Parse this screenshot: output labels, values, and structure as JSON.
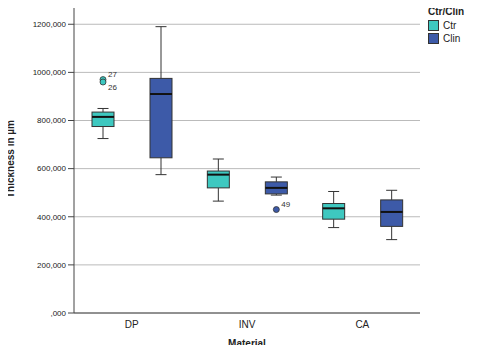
{
  "chart_data": {
    "type": "box",
    "x_label": "Material",
    "y_label": "Thickness in µm",
    "categories": [
      "DP",
      "INV",
      "CA"
    ],
    "ylim": [
      0,
      1280000
    ],
    "yticks": [
      {
        "value": 0,
        "label": ",000"
      },
      {
        "value": 200000,
        "label": "200,000"
      },
      {
        "value": 400000,
        "label": "400,000"
      },
      {
        "value": 600000,
        "label": "600,000"
      },
      {
        "value": 800000,
        "label": "800,000"
      },
      {
        "value": 1000000,
        "label": "1000,000"
      },
      {
        "value": 1200000,
        "label": "1200,000"
      }
    ],
    "grid": true,
    "legend": "upper right",
    "legend_title": "Ctr/Clin",
    "series": [
      {
        "name": "Ctr",
        "color": "#3ec8c0",
        "boxes": [
          {
            "min": 725000,
            "q1": 775000,
            "median": 815000,
            "q3": 835000,
            "max": 850000,
            "outliers": [
              {
                "value": 970000,
                "label": "27"
              },
              {
                "value": 960000,
                "label": "26"
              }
            ]
          },
          {
            "min": 465000,
            "q1": 520000,
            "median": 575000,
            "q3": 590000,
            "max": 640000,
            "outliers": []
          },
          {
            "min": 355000,
            "q1": 390000,
            "median": 435000,
            "q3": 455000,
            "max": 505000,
            "outliers": []
          }
        ]
      },
      {
        "name": "Clin",
        "color": "#3d5aa8",
        "boxes": [
          {
            "min": 575000,
            "q1": 645000,
            "median": 910000,
            "q3": 975000,
            "max": 1190000,
            "outliers": []
          },
          {
            "min": 490000,
            "q1": 495000,
            "median": 520000,
            "q3": 545000,
            "max": 565000,
            "outliers": [
              {
                "value": 430000,
                "label": "49"
              }
            ]
          },
          {
            "min": 305000,
            "q1": 360000,
            "median": 420000,
            "q3": 470000,
            "max": 510000,
            "outliers": []
          }
        ]
      }
    ]
  }
}
